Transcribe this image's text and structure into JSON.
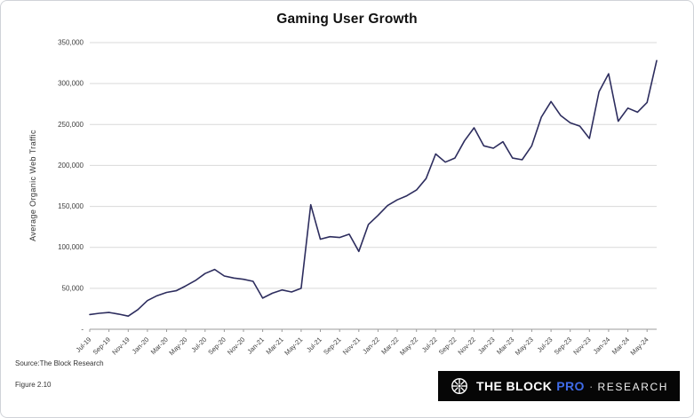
{
  "source_note": "Source:The Block Research",
  "figure_label": "Figure 2.10",
  "logo": {
    "icon": "the-block-logo-icon",
    "brand": "THE BLOCK",
    "pro": "PRO",
    "separator": "·",
    "research": "RESEARCH",
    "pro_color": "#3f6be8",
    "bg_color": "#060606"
  },
  "chart_data": {
    "type": "line",
    "title": "Gaming User Growth",
    "ylabel": "Average Organic Web Traffic",
    "line_color": "#2d2d5e",
    "grid": true,
    "legend": "none",
    "ylim": [
      0,
      350000
    ],
    "y_ticks": [
      0,
      50000,
      100000,
      150000,
      200000,
      250000,
      300000,
      350000
    ],
    "y_tick_labels": [
      "-",
      "50,000",
      "100,000",
      "150,000",
      "200,000",
      "250,000",
      "300,000",
      "350,000"
    ],
    "x_tick_labels": [
      "Jul-19",
      "Sep-19",
      "Nov-19",
      "Jan-20",
      "Mar-20",
      "May-20",
      "Jul-20",
      "Sep-20",
      "Nov-20",
      "Jan-21",
      "Mar-21",
      "May-21",
      "Jul-21",
      "Sep-21",
      "Nov-21",
      "Jan-22",
      "Mar-22",
      "May-22",
      "Jul-22",
      "Sep-22",
      "Nov-22",
      "Jan-23",
      "Mar-23",
      "May-23",
      "Jul-23",
      "Sep-23",
      "Nov-23",
      "Jan-24",
      "Mar-24",
      "May-24"
    ],
    "x": [
      "Jul-19",
      "Aug-19",
      "Sep-19",
      "Oct-19",
      "Nov-19",
      "Dec-19",
      "Jan-20",
      "Feb-20",
      "Mar-20",
      "Apr-20",
      "May-20",
      "Jun-20",
      "Jul-20",
      "Aug-20",
      "Sep-20",
      "Oct-20",
      "Nov-20",
      "Dec-20",
      "Jan-21",
      "Feb-21",
      "Mar-21",
      "Apr-21",
      "May-21",
      "Jun-21",
      "Jul-21",
      "Aug-21",
      "Sep-21",
      "Oct-21",
      "Nov-21",
      "Dec-21",
      "Jan-22",
      "Feb-22",
      "Mar-22",
      "Apr-22",
      "May-22",
      "Jun-22",
      "Jul-22",
      "Aug-22",
      "Sep-22",
      "Oct-22",
      "Nov-22",
      "Dec-22",
      "Jan-23",
      "Feb-23",
      "Mar-23",
      "Apr-23",
      "May-23",
      "Jun-23",
      "Jul-23",
      "Aug-23",
      "Sep-23",
      "Oct-23",
      "Nov-23",
      "Dec-23",
      "Jan-24",
      "Feb-24",
      "Mar-24",
      "Apr-24",
      "May-24",
      "Jun-24"
    ],
    "values": [
      18000,
      19500,
      20500,
      18500,
      16000,
      24000,
      35000,
      41000,
      45000,
      47000,
      53000,
      59500,
      68000,
      73000,
      65000,
      62500,
      61000,
      58500,
      38000,
      44000,
      48000,
      45500,
      50000,
      152000,
      110000,
      113000,
      112000,
      116000,
      95000,
      128000,
      139000,
      151000,
      158000,
      163000,
      170000,
      184000,
      214000,
      204000,
      209000,
      230000,
      246000,
      224000,
      221000,
      229000,
      209000,
      207000,
      224000,
      259000,
      278000,
      261000,
      252000,
      248000,
      233000,
      290000,
      312000,
      254000,
      270000,
      265000,
      277000,
      328000
    ]
  }
}
